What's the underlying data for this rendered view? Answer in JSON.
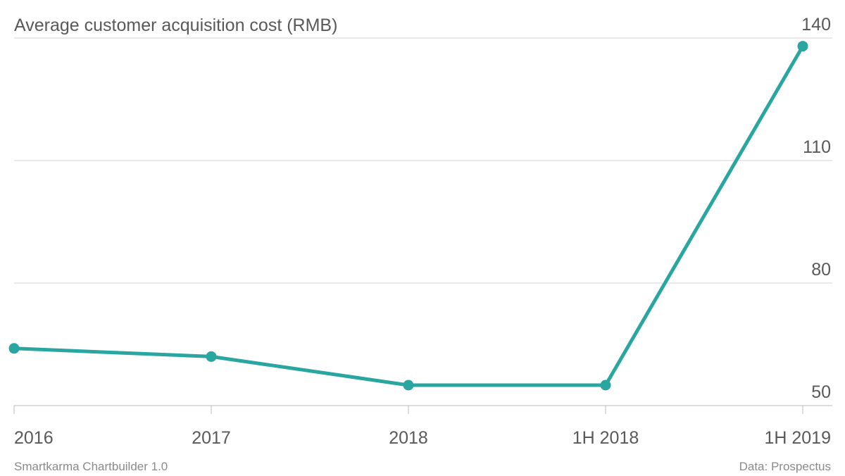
{
  "chart_data": {
    "type": "line",
    "title": "Average customer acquisition cost (RMB)",
    "categories": [
      "2016",
      "2017",
      "2018",
      "1H 2018",
      "1H 2019"
    ],
    "series": [
      {
        "values": [
          64,
          62,
          55,
          55,
          138
        ]
      }
    ],
    "ylim": [
      50,
      140
    ],
    "yticks": [
      50,
      80,
      110,
      140
    ],
    "y_axis_side": "right",
    "grid": true,
    "legend": "none",
    "colors": {
      "line": "#2aa6a0",
      "grid": "#dcdcdc",
      "text": "#595959",
      "footer": "#8a8a8a"
    }
  },
  "footer": {
    "credit": "Smartkarma Chartbuilder 1.0",
    "source": "Data: Prospectus"
  }
}
